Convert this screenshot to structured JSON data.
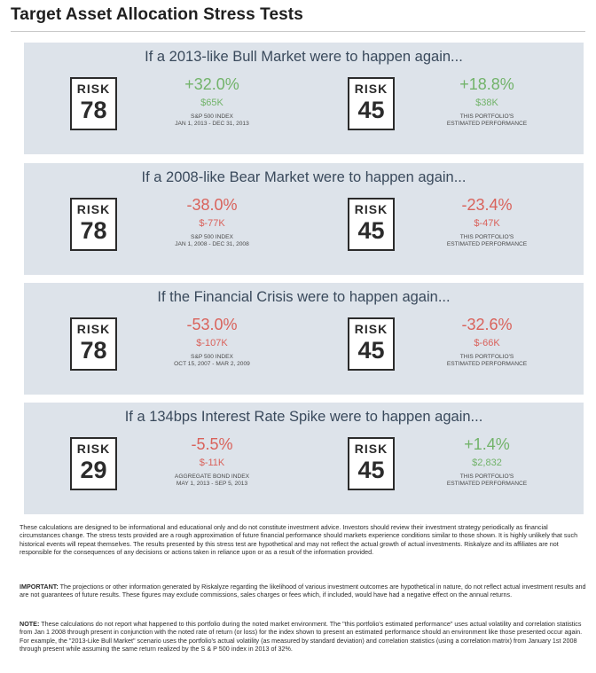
{
  "title": "Target Asset Allocation Stress Tests",
  "colors": {
    "positive": "#72b36a",
    "negative": "#d9625b",
    "panel_bg": "#dde3ea"
  },
  "risk_label": "RISK",
  "scenarios": [
    {
      "heading": "If a 2013-like Bull Market were to happen again...",
      "index_risk": "78",
      "index_pct": "+32.0%",
      "index_amt": "$65K",
      "index_cap1": "S&P 500 INDEX",
      "index_cap2": "JAN 1, 2013 - DEC 31, 2013",
      "portfolio_risk": "45",
      "portfolio_pct": "+18.8%",
      "portfolio_amt": "$38K",
      "portfolio_cap1": "THIS PORTFOLIO'S",
      "portfolio_cap2": "ESTIMATED PERFORMANCE"
    },
    {
      "heading": "If a 2008-like Bear Market were to happen again...",
      "index_risk": "78",
      "index_pct": "-38.0%",
      "index_amt": "$-77K",
      "index_cap1": "S&P 500 INDEX",
      "index_cap2": "JAN 1, 2008 - DEC 31, 2008",
      "portfolio_risk": "45",
      "portfolio_pct": "-23.4%",
      "portfolio_amt": "$-47K",
      "portfolio_cap1": "THIS PORTFOLIO'S",
      "portfolio_cap2": "ESTIMATED PERFORMANCE"
    },
    {
      "heading": "If the Financial Crisis were to happen again...",
      "index_risk": "78",
      "index_pct": "-53.0%",
      "index_amt": "$-107K",
      "index_cap1": "S&P 500 INDEX",
      "index_cap2": "OCT 15, 2007 - MAR 2, 2009",
      "portfolio_risk": "45",
      "portfolio_pct": "-32.6%",
      "portfolio_amt": "$-66K",
      "portfolio_cap1": "THIS PORTFOLIO'S",
      "portfolio_cap2": "ESTIMATED PERFORMANCE"
    },
    {
      "heading": "If a 134bps Interest Rate Spike were to happen again...",
      "index_risk": "29",
      "index_pct": "-5.5%",
      "index_amt": "$-11K",
      "index_cap1": "AGGREGATE BOND INDEX",
      "index_cap2": "MAY 1, 2013 - SEP 5, 2013",
      "portfolio_risk": "45",
      "portfolio_pct": "+1.4%",
      "portfolio_amt": "$2,832",
      "portfolio_cap1": "THIS PORTFOLIO'S",
      "portfolio_cap2": "ESTIMATED PERFORMANCE"
    }
  ],
  "disclaimer": {
    "general": "These calculations are designed to be informational and educational only and do not constitute investment advice. Investors should review their investment strategy periodically as financial circumstances change. The stress tests provided are a rough approximation of future financial performance should markets experience conditions similar to those shown. It is highly unlikely that such historical events will repeat themselves. The results presented by this stress test are hypothetical and may not reflect the actual growth of actual investments. Riskalyze and its affiliates are not responsible for the consequences of any decisions or actions taken in reliance upon or as a result of the information provided.",
    "important_label": "IMPORTANT:",
    "important": " The projections or other information generated by Riskalyze regarding the likelihood of various investment outcomes are hypothetical in nature, do not reflect actual investment results and are not guarantees of future results. These figures may exclude commissions, sales charges or fees which, if included, would have had a negative effect on the annual returns.",
    "note_label": "NOTE:",
    "note": " These calculations do not report what happened to this portfolio during the noted market environment. The \"this portfolio's estimated performance\" uses actual volatility and correlation statistics from Jan 1 2008 through present in conjunction with the noted rate of return (or loss) for the index shown to present an estimated performance should an environment like those presented occur again. For example, the \"2013-Like Bull Market\" scenario uses the portfolio's actual volatility (as measured by standard deviation) and correlation statistics (using a correlation matrix) from January 1st 2008 through present while assuming the same return realized by the S & P 500 index in 2013 of 32%."
  }
}
